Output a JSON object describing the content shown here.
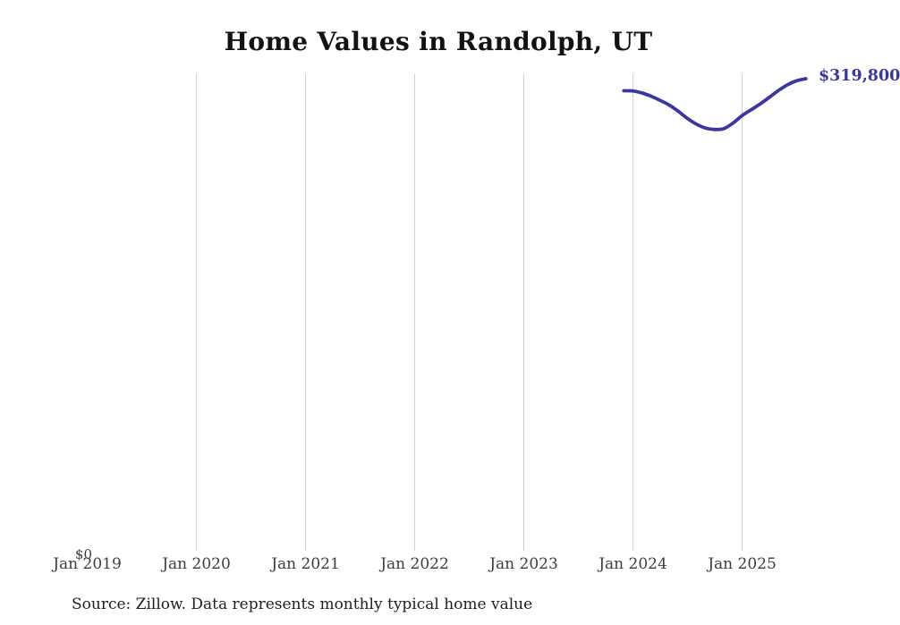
{
  "chart_data": {
    "type": "line",
    "title": "Home Values in Randolph, UT",
    "xlabel": "",
    "ylabel": "",
    "x_tick_labels": [
      "Jan 2019",
      "Jan 2020",
      "Jan 2021",
      "Jan 2022",
      "Jan 2023",
      "Jan 2024",
      "Jan 2025"
    ],
    "y_tick_labels": [
      "$0"
    ],
    "ylim": [
      0,
      323000
    ],
    "grid": "vertical-gridlines-only",
    "legend": "none",
    "line_color": "#3a36a2",
    "gridline_color": "#d0d0d0",
    "end_label": "$319,800",
    "source_note": "Source: Zillow. Data represents monthly typical home value",
    "series": [
      {
        "name": "Monthly typical home value",
        "x": [
          "Dec 2023",
          "Jan 2024",
          "Feb 2024",
          "Mar 2024",
          "Apr 2024",
          "May 2024",
          "Jun 2024",
          "Jul 2024",
          "Aug 2024",
          "Sep 2024",
          "Oct 2024",
          "Nov 2024",
          "Dec 2024",
          "Jan 2025",
          "Feb 2025",
          "Mar 2025",
          "Apr 2025",
          "May 2025",
          "Jun 2025",
          "Jul 2025",
          "Aug 2025"
        ],
        "values": [
          311600,
          311500,
          310100,
          307900,
          305100,
          301900,
          297700,
          292800,
          288900,
          286300,
          285400,
          286000,
          289700,
          294800,
          298800,
          302700,
          307200,
          311800,
          315700,
          318400,
          319800
        ]
      }
    ]
  }
}
